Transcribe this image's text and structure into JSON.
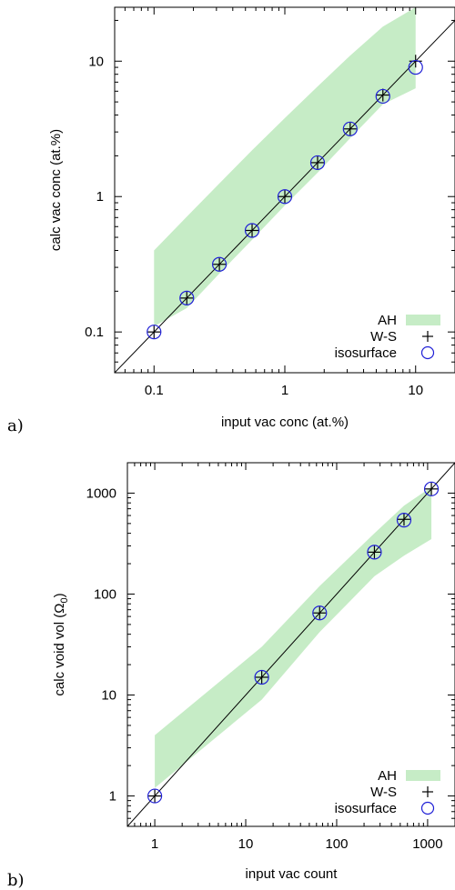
{
  "chart_data": [
    {
      "type": "scatter",
      "panel_label": "a)",
      "xlabel": "input vac conc (at.%)",
      "ylabel": "calc vac conc (at.%)",
      "xscale": "log",
      "yscale": "log",
      "xlim": [
        0.05,
        20
      ],
      "ylim": [
        0.05,
        25
      ],
      "xticks": [
        0.1,
        1,
        10
      ],
      "xtick_labels": [
        "0.1",
        "1",
        "10"
      ],
      "yticks": [
        0.1,
        1,
        10
      ],
      "ytick_labels": [
        "0.1",
        "1",
        "10"
      ],
      "reference_line": "y = x",
      "legend_position": "bottom-right",
      "band": {
        "name": "AH",
        "x": [
          0.1,
          0.178,
          0.316,
          0.562,
          1.0,
          1.78,
          3.16,
          5.62,
          10.0
        ],
        "lower": [
          0.11,
          0.15,
          0.27,
          0.48,
          0.86,
          1.5,
          2.7,
          4.8,
          6.3
        ],
        "upper": [
          0.4,
          0.71,
          1.25,
          2.2,
          3.8,
          6.5,
          11.0,
          18.0,
          25.0
        ]
      },
      "series": [
        {
          "name": "W-S",
          "marker": "plus",
          "x": [
            0.1,
            0.178,
            0.316,
            0.562,
            1.0,
            1.78,
            3.16,
            5.62,
            10.0
          ],
          "y": [
            0.1,
            0.178,
            0.316,
            0.562,
            1.0,
            1.78,
            3.16,
            5.62,
            10.0
          ]
        },
        {
          "name": "isosurface",
          "marker": "circle",
          "x": [
            0.1,
            0.178,
            0.316,
            0.562,
            1.0,
            1.78,
            3.16,
            5.62,
            10.0
          ],
          "y": [
            0.1,
            0.178,
            0.316,
            0.562,
            1.0,
            1.78,
            3.16,
            5.5,
            9.0
          ]
        }
      ]
    },
    {
      "type": "scatter",
      "panel_label": "b)",
      "xlabel": "input vac count",
      "ylabel_main": "calc void vol (Ω",
      "ylabel_sub": "0",
      "ylabel_end": ")",
      "xscale": "log",
      "yscale": "log",
      "xlim": [
        0.5,
        2000
      ],
      "ylim": [
        0.5,
        2000
      ],
      "xticks": [
        1,
        10,
        100,
        1000
      ],
      "xtick_labels": [
        "1",
        "10",
        "100",
        "1000"
      ],
      "yticks": [
        1,
        10,
        100,
        1000
      ],
      "ytick_labels": [
        "1",
        "10",
        "100",
        "1000"
      ],
      "reference_line": "y = x",
      "legend_position": "bottom-right",
      "band": {
        "name": "AH",
        "x": [
          1,
          15,
          65,
          260,
          550,
          1100
        ],
        "lower": [
          1.2,
          9,
          42,
          150,
          240,
          350
        ],
        "upper": [
          4,
          30,
          120,
          400,
          750,
          1150
        ]
      },
      "series": [
        {
          "name": "W-S",
          "marker": "plus",
          "x": [
            1,
            15,
            65,
            260,
            550,
            1100
          ],
          "y": [
            1,
            15,
            65,
            260,
            550,
            1100
          ]
        },
        {
          "name": "isosurface",
          "marker": "circle",
          "x": [
            1,
            15,
            65,
            260,
            550,
            1100
          ],
          "y": [
            1,
            15,
            65,
            260,
            540,
            1100
          ]
        }
      ]
    }
  ],
  "colors": {
    "band": "#c6ecc6",
    "circle": "#1f1fd6",
    "plus": "#000000",
    "line": "#000000"
  }
}
